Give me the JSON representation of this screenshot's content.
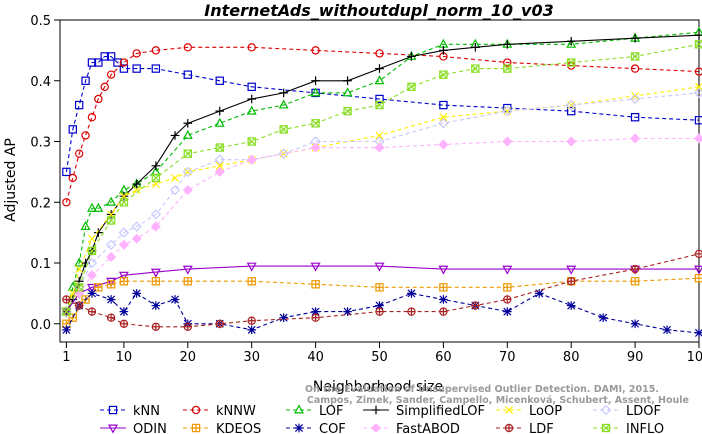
{
  "chart_data": {
    "type": "line",
    "title": "InternetAds_withoutdupl_norm_10_v03",
    "xlabel": "Neighborhood size",
    "ylabel": "Adjusted AP",
    "xlim": [
      0,
      100
    ],
    "ylim": [
      -0.03,
      0.5
    ],
    "xticks": [
      1,
      10,
      20,
      30,
      40,
      50,
      60,
      70,
      80,
      90,
      100
    ],
    "yticks": [
      0.0,
      0.1,
      0.2,
      0.3,
      0.4,
      0.5
    ],
    "ytick_labels": [
      "0.0",
      "0.1",
      "0.2",
      "0.3",
      "0.4",
      "0.5"
    ],
    "grid": false,
    "legend_position": "bottom",
    "watermark": "Campos, Zimek, Sander, Campello, Micenková, Schubert, Assent, Houle",
    "watermark_line1": "On the Evaluation of Unsupervised Outlier Detection. DAMI, 2015.",
    "series": [
      {
        "name": "kNN",
        "color": "#0000cc",
        "marker": "square",
        "dashed": true,
        "x": [
          1,
          2,
          3,
          4,
          5,
          6,
          7,
          8,
          9,
          10,
          12,
          15,
          20,
          25,
          30,
          40,
          50,
          60,
          70,
          80,
          90,
          100
        ],
        "y": [
          0.25,
          0.32,
          0.36,
          0.4,
          0.43,
          0.43,
          0.44,
          0.44,
          0.43,
          0.42,
          0.42,
          0.42,
          0.41,
          0.4,
          0.39,
          0.38,
          0.37,
          0.36,
          0.355,
          0.35,
          0.34,
          0.335
        ]
      },
      {
        "name": "kNNW",
        "color": "#dd0000",
        "marker": "circle",
        "dashed": true,
        "x": [
          1,
          2,
          3,
          4,
          5,
          6,
          7,
          8,
          10,
          12,
          15,
          20,
          30,
          40,
          50,
          60,
          70,
          80,
          90,
          100
        ],
        "y": [
          0.2,
          0.24,
          0.28,
          0.31,
          0.34,
          0.37,
          0.39,
          0.41,
          0.43,
          0.445,
          0.45,
          0.455,
          0.455,
          0.45,
          0.445,
          0.44,
          0.43,
          0.425,
          0.42,
          0.415
        ]
      },
      {
        "name": "LOF",
        "color": "#00bb00",
        "marker": "triangle",
        "dashed": true,
        "x": [
          1,
          2,
          3,
          4,
          5,
          6,
          8,
          10,
          12,
          15,
          20,
          25,
          30,
          35,
          40,
          45,
          50,
          55,
          60,
          65,
          70,
          80,
          90,
          100
        ],
        "y": [
          0.02,
          0.06,
          0.1,
          0.16,
          0.19,
          0.19,
          0.2,
          0.22,
          0.23,
          0.25,
          0.31,
          0.33,
          0.35,
          0.36,
          0.38,
          0.38,
          0.4,
          0.44,
          0.46,
          0.46,
          0.46,
          0.46,
          0.47,
          0.48
        ]
      },
      {
        "name": "SimplifiedLOF",
        "color": "#000000",
        "marker": "plus",
        "dashed": false,
        "x": [
          1,
          2,
          3,
          4,
          5,
          6,
          8,
          10,
          12,
          15,
          18,
          20,
          25,
          30,
          35,
          40,
          45,
          50,
          55,
          60,
          65,
          70,
          80,
          90,
          100
        ],
        "y": [
          0.02,
          0.04,
          0.07,
          0.1,
          0.12,
          0.15,
          0.18,
          0.21,
          0.23,
          0.26,
          0.31,
          0.33,
          0.35,
          0.37,
          0.38,
          0.4,
          0.4,
          0.42,
          0.44,
          0.45,
          0.455,
          0.46,
          0.465,
          0.47,
          0.475
        ]
      },
      {
        "name": "LoOP",
        "color": "#ffee00",
        "marker": "x",
        "dashed": true,
        "x": [
          1,
          2,
          3,
          5,
          8,
          10,
          12,
          15,
          18,
          20,
          25,
          30,
          35,
          40,
          50,
          60,
          70,
          80,
          90,
          100
        ],
        "y": [
          0.02,
          0.05,
          0.09,
          0.14,
          0.18,
          0.21,
          0.22,
          0.23,
          0.24,
          0.25,
          0.26,
          0.27,
          0.28,
          0.29,
          0.31,
          0.34,
          0.35,
          0.36,
          0.375,
          0.39
        ]
      },
      {
        "name": "LDOF",
        "color": "#c8c8ff",
        "marker": "diamond",
        "dashed": true,
        "x": [
          1,
          3,
          5,
          8,
          10,
          12,
          15,
          18,
          20,
          25,
          30,
          35,
          40,
          50,
          60,
          70,
          80,
          90,
          100
        ],
        "y": [
          0.02,
          0.06,
          0.1,
          0.13,
          0.15,
          0.16,
          0.18,
          0.22,
          0.25,
          0.27,
          0.27,
          0.28,
          0.3,
          0.3,
          0.33,
          0.35,
          0.36,
          0.37,
          0.38
        ]
      },
      {
        "name": "ODIN",
        "color": "#9900cc",
        "marker": "triangle-down",
        "dashed": false,
        "x": [
          1,
          3,
          5,
          8,
          10,
          15,
          20,
          30,
          40,
          50,
          60,
          70,
          80,
          90,
          100
        ],
        "y": [
          0.02,
          0.05,
          0.06,
          0.07,
          0.08,
          0.085,
          0.09,
          0.095,
          0.095,
          0.095,
          0.09,
          0.09,
          0.09,
          0.09,
          0.09
        ]
      },
      {
        "name": "KDEOS",
        "color": "#ee9900",
        "marker": "square-cross",
        "dashed": true,
        "x": [
          1,
          2,
          4,
          6,
          8,
          10,
          15,
          20,
          30,
          40,
          50,
          60,
          70,
          80,
          90,
          100
        ],
        "y": [
          0.0,
          0.01,
          0.04,
          0.06,
          0.065,
          0.07,
          0.07,
          0.07,
          0.07,
          0.065,
          0.06,
          0.06,
          0.06,
          0.07,
          0.07,
          0.075
        ]
      },
      {
        "name": "COF",
        "color": "#000099",
        "marker": "star",
        "dashed": true,
        "x": [
          1,
          3,
          5,
          8,
          10,
          12,
          15,
          18,
          20,
          25,
          30,
          35,
          40,
          45,
          50,
          55,
          60,
          65,
          70,
          75,
          80,
          85,
          90,
          95,
          100
        ],
        "y": [
          -0.01,
          0.03,
          0.05,
          0.04,
          0.02,
          0.05,
          0.03,
          0.04,
          0.0,
          0.0,
          -0.01,
          0.01,
          0.02,
          0.02,
          0.03,
          0.05,
          0.04,
          0.03,
          0.02,
          0.05,
          0.03,
          0.01,
          0.0,
          -0.01,
          -0.015
        ]
      },
      {
        "name": "FastABOD",
        "color": "#ffb3ff",
        "marker": "diamond-filled",
        "dashed": true,
        "x": [
          3,
          5,
          8,
          10,
          12,
          15,
          20,
          25,
          30,
          40,
          50,
          60,
          70,
          80,
          90,
          100
        ],
        "y": [
          0.05,
          0.08,
          0.11,
          0.13,
          0.14,
          0.16,
          0.22,
          0.25,
          0.27,
          0.29,
          0.29,
          0.295,
          0.3,
          0.3,
          0.305,
          0.305
        ]
      },
      {
        "name": "LDF",
        "color": "#aa2222",
        "marker": "circle-cross",
        "dashed": true,
        "x": [
          1,
          3,
          5,
          8,
          10,
          15,
          20,
          25,
          30,
          40,
          50,
          55,
          60,
          65,
          70,
          80,
          90,
          100
        ],
        "y": [
          0.04,
          0.03,
          0.02,
          0.01,
          0.0,
          -0.005,
          -0.005,
          0.0,
          0.005,
          0.01,
          0.02,
          0.02,
          0.02,
          0.03,
          0.04,
          0.07,
          0.09,
          0.115
        ]
      },
      {
        "name": "INFLO",
        "color": "#88dd22",
        "marker": "square-x",
        "dashed": true,
        "x": [
          1,
          3,
          5,
          8,
          10,
          15,
          20,
          25,
          30,
          35,
          40,
          45,
          50,
          55,
          60,
          65,
          70,
          80,
          90,
          100
        ],
        "y": [
          0.02,
          0.06,
          0.12,
          0.17,
          0.2,
          0.24,
          0.28,
          0.29,
          0.3,
          0.32,
          0.33,
          0.35,
          0.36,
          0.39,
          0.41,
          0.42,
          0.42,
          0.43,
          0.44,
          0.46
        ]
      }
    ]
  }
}
